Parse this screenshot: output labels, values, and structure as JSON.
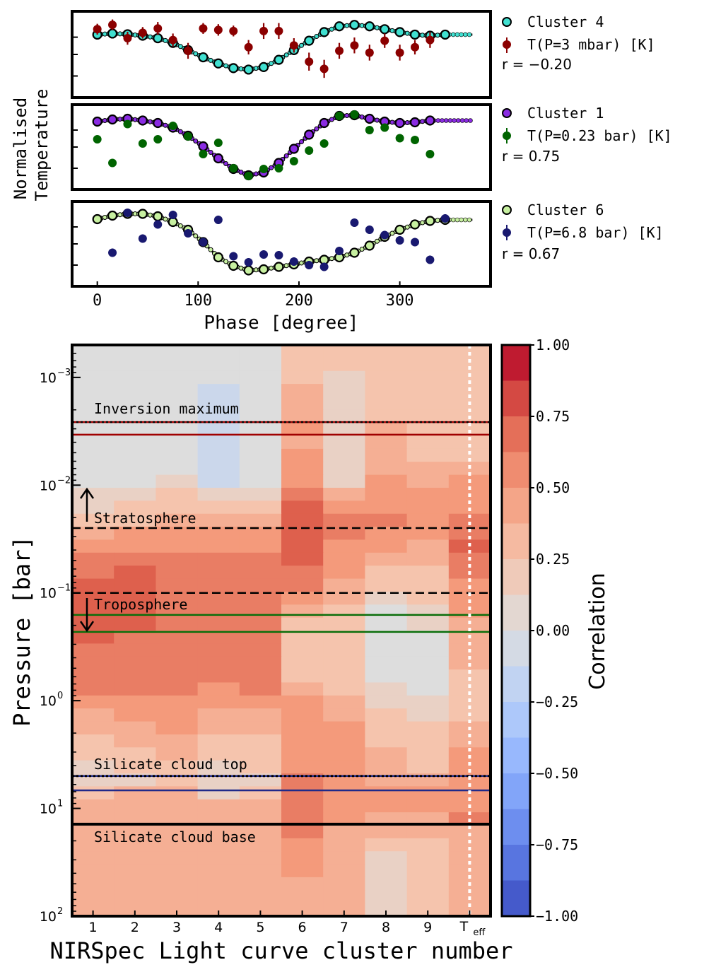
{
  "figure": {
    "top_ylabel_line1": "Normalised",
    "top_ylabel_line2": "Temperature",
    "top_xlabel": "Phase [degree]",
    "top_xticks": [
      0,
      100,
      200,
      300
    ],
    "panels": [
      {
        "cluster_label": "Cluster 4",
        "temp_label": "T(P=3 mbar) [K]",
        "r_label": "r = −0.20",
        "cluster_color": "#40e0d0",
        "temp_color": "#8b0000"
      },
      {
        "cluster_label": "Cluster 1",
        "temp_label": "T(P=0.23 bar) [K]",
        "r_label": "r = 0.75",
        "cluster_color": "#8a2be2",
        "temp_color": "#006400"
      },
      {
        "cluster_label": "Cluster 6",
        "temp_label": "T(P=6.8 bar) [K]",
        "r_label": "r = 0.67",
        "cluster_color": "#c7f0a0",
        "temp_color": "#191970"
      }
    ],
    "heatmap": {
      "xlabel": "NIRSpec Light curve cluster number",
      "ylabel": "Pressure [bar]",
      "colorbar_label": "Correlation",
      "colorbar_ticks": [
        "1.00",
        "0.75",
        "0.50",
        "0.25",
        "0.00",
        "−0.25",
        "−0.50",
        "−0.75",
        "−1.00"
      ],
      "xticks": [
        "1",
        "2",
        "3",
        "4",
        "5",
        "6",
        "7",
        "8",
        "9",
        "T_eff"
      ],
      "yticks": [
        {
          "base": "10",
          "exp": "−3"
        },
        {
          "base": "10",
          "exp": "−2"
        },
        {
          "base": "10",
          "exp": "−1"
        },
        {
          "base": "10",
          "exp": "0"
        },
        {
          "base": "10",
          "exp": "1"
        },
        {
          "base": "10",
          "exp": "2"
        }
      ],
      "annotations": {
        "inversion": "Inversion maximum",
        "stratosphere": "Stratosphere",
        "troposphere": "Troposphere",
        "cloud_top": "Silicate cloud top",
        "cloud_base": "Silicate cloud base"
      }
    }
  },
  "chart_data": [
    {
      "type": "scatter",
      "panel": "top",
      "x_range": [
        -25,
        390
      ],
      "series": [
        {
          "name": "Cluster 4",
          "color": "#40e0d0",
          "x": [
            0,
            15,
            30,
            45,
            60,
            75,
            90,
            105,
            120,
            135,
            150,
            165,
            180,
            195,
            210,
            225,
            240,
            255,
            270,
            285,
            300,
            315,
            330,
            345
          ],
          "y": [
            0.55,
            0.58,
            0.56,
            0.52,
            0.45,
            0.32,
            0.12,
            -0.08,
            -0.25,
            -0.38,
            -0.42,
            -0.35,
            -0.15,
            0.12,
            0.38,
            0.62,
            0.78,
            0.82,
            0.78,
            0.7,
            0.62,
            0.55,
            0.52,
            0.55
          ]
        },
        {
          "name": "T(P=3 mbar) [K]",
          "color": "#8b0000",
          "x": [
            0,
            15,
            30,
            45,
            60,
            75,
            90,
            105,
            120,
            135,
            150,
            165,
            180,
            195,
            210,
            225,
            240,
            255,
            270,
            285,
            300,
            315,
            330
          ],
          "y": [
            0.7,
            0.82,
            0.45,
            0.6,
            0.72,
            0.4,
            0.1,
            0.72,
            0.68,
            0.65,
            0.2,
            0.65,
            0.65,
            0.25,
            -0.2,
            -0.4,
            0.1,
            0.25,
            0.05,
            0.38,
            0.05,
            0.2,
            0.4
          ],
          "yerr": [
            0.15,
            0.15,
            0.18,
            0.16,
            0.18,
            0.18,
            0.22,
            0.15,
            0.16,
            0.15,
            0.2,
            0.22,
            0.22,
            0.2,
            0.25,
            0.25,
            0.22,
            0.22,
            0.22,
            0.2,
            0.22,
            0.2,
            0.22
          ]
        }
      ]
    },
    {
      "type": "scatter",
      "panel": "middle",
      "x_range": [
        -25,
        390
      ],
      "series": [
        {
          "name": "Cluster 1",
          "color": "#8a2be2",
          "x": [
            0,
            15,
            30,
            45,
            60,
            75,
            90,
            105,
            120,
            135,
            150,
            165,
            180,
            195,
            210,
            225,
            240,
            255,
            270,
            285,
            300,
            315,
            330
          ],
          "y": [
            0.72,
            0.78,
            0.8,
            0.75,
            0.68,
            0.55,
            0.32,
            0.02,
            -0.32,
            -0.62,
            -0.8,
            -0.72,
            -0.45,
            -0.05,
            0.35,
            0.68,
            0.88,
            0.9,
            0.8,
            0.72,
            0.68,
            0.7,
            0.75
          ]
        },
        {
          "name": "T(P=0.23 bar) [K]",
          "color": "#006400",
          "x": [
            0,
            15,
            30,
            45,
            60,
            75,
            90,
            105,
            120,
            135,
            150,
            165,
            180,
            195,
            210,
            225,
            240,
            255,
            270,
            285,
            300,
            315,
            330
          ],
          "y": [
            0.22,
            -0.45,
            0.65,
            0.1,
            0.22,
            0.6,
            0.3,
            -0.2,
            0.12,
            -0.6,
            -0.82,
            -0.62,
            -0.6,
            -0.4,
            -0.1,
            0.1,
            0.88,
            0.92,
            0.48,
            0.55,
            0.25,
            0.2,
            -0.2
          ],
          "yerr": [
            0.04,
            0.04,
            0.04,
            0.04,
            0.04,
            0.04,
            0.04,
            0.04,
            0.04,
            0.04,
            0.04,
            0.04,
            0.04,
            0.04,
            0.04,
            0.04,
            0.04,
            0.04,
            0.04,
            0.04,
            0.04,
            0.04,
            0.08
          ]
        }
      ]
    },
    {
      "type": "scatter",
      "panel": "bottom",
      "x_range": [
        -25,
        390
      ],
      "series": [
        {
          "name": "Cluster 6",
          "color": "#c7f0a0",
          "x": [
            0,
            15,
            30,
            45,
            60,
            75,
            90,
            105,
            120,
            135,
            150,
            165,
            180,
            195,
            210,
            225,
            240,
            255,
            270,
            285,
            300,
            315,
            330,
            345
          ],
          "y": [
            0.7,
            0.8,
            0.85,
            0.85,
            0.78,
            0.62,
            0.4,
            0.05,
            -0.38,
            -0.62,
            -0.75,
            -0.72,
            -0.65,
            -0.58,
            -0.5,
            -0.45,
            -0.38,
            -0.25,
            -0.05,
            0.2,
            0.4,
            0.55,
            0.65,
            0.68
          ]
        },
        {
          "name": "T(P=6.8 bar) [K]",
          "color": "#191970",
          "x": [
            15,
            30,
            45,
            60,
            75,
            90,
            105,
            120,
            135,
            150,
            165,
            180,
            195,
            210,
            225,
            240,
            255,
            270,
            285,
            300,
            315,
            330,
            345
          ],
          "y": [
            -0.25,
            0.88,
            0.15,
            0.55,
            0.82,
            0.3,
            0.05,
            0.68,
            -0.35,
            -0.52,
            -0.3,
            -0.32,
            -0.5,
            -0.6,
            -0.65,
            -0.2,
            0.6,
            0.4,
            0.25,
            0.1,
            0.05,
            -0.45,
            0.72
          ],
          "yerr": [
            0.12,
            0.12,
            0.12,
            0.12,
            0.12,
            0.12,
            0.12,
            0.12,
            0.12,
            0.12,
            0.12,
            0.12,
            0.12,
            0.12,
            0.12,
            0.12,
            0.12,
            0.12,
            0.12,
            0.12,
            0.12,
            0.12,
            0.12
          ]
        }
      ]
    },
    {
      "type": "heatmap",
      "panel": "heatmap",
      "x_categories": [
        "1",
        "2",
        "3",
        "4",
        "5",
        "6",
        "7",
        "8",
        "9",
        "T_eff"
      ],
      "y_scale": "log",
      "y_range_bar": [
        0.0005,
        100
      ],
      "colorbar_range": [
        -1,
        1
      ],
      "reference_pressures_bar": {
        "inversion_maximum": 0.0026,
        "inversion_band": [
          0.0026,
          0.0034
        ],
        "stratosphere": 0.025,
        "troposphere": 0.1,
        "green_band": [
          0.16,
          0.23
        ],
        "silicate_cloud_top": 5.0,
        "blue_band": [
          5.0,
          6.8
        ],
        "silicate_cloud_base": 14.0
      },
      "row_pressures_bar": [
        0.00061,
        0.00081,
        0.00106,
        0.0014,
        0.00184,
        0.00242,
        0.0032,
        0.0042,
        0.0055,
        0.0073,
        0.0096,
        0.0126,
        0.0166,
        0.0219,
        0.0288,
        0.038,
        0.05,
        0.066,
        0.087,
        0.114,
        0.15,
        0.198,
        0.26,
        0.34,
        0.45,
        0.59,
        0.78,
        1.03,
        1.36,
        1.79,
        2.35,
        3.1,
        4.1,
        5.4,
        7.1,
        9.3,
        12.3,
        16.2,
        21.3,
        28.1,
        37.0,
        48.7,
        64.2,
        84.5
      ],
      "values": [
        [
          0.0,
          0.0,
          0.05,
          0.05,
          0.05,
          0.3,
          0.2,
          0.25,
          0.2,
          0.25
        ],
        [
          0.0,
          0.0,
          0.05,
          0.05,
          0.05,
          0.3,
          0.2,
          0.25,
          0.2,
          0.25
        ],
        [
          0.0,
          0.0,
          0.05,
          -0.05,
          0.0,
          0.3,
          0.1,
          0.25,
          0.2,
          0.25
        ],
        [
          -0.05,
          0.0,
          0.05,
          -0.1,
          0.0,
          0.35,
          0.1,
          0.3,
          0.2,
          0.25
        ],
        [
          -0.05,
          -0.05,
          0.0,
          -0.1,
          0.0,
          0.4,
          0.1,
          0.3,
          0.2,
          0.25
        ],
        [
          -0.05,
          -0.05,
          0.0,
          -0.1,
          0.0,
          0.4,
          0.1,
          0.3,
          0.2,
          0.25
        ],
        [
          -0.05,
          -0.05,
          0.0,
          -0.15,
          0.0,
          0.45,
          0.15,
          0.35,
          0.3,
          0.3
        ],
        [
          -0.05,
          -0.05,
          0.0,
          -0.15,
          0.0,
          0.4,
          0.15,
          0.35,
          0.3,
          0.3
        ],
        [
          -0.05,
          -0.05,
          0.05,
          -0.15,
          -0.05,
          0.45,
          0.15,
          0.35,
          0.3,
          0.3
        ],
        [
          -0.05,
          -0.05,
          0.05,
          -0.15,
          -0.05,
          0.5,
          0.1,
          0.4,
          0.35,
          0.4
        ],
        [
          -0.05,
          0.0,
          0.1,
          -0.1,
          0.0,
          0.55,
          0.15,
          0.45,
          0.4,
          0.45
        ],
        [
          0.1,
          0.15,
          0.2,
          0.1,
          0.15,
          0.6,
          0.4,
          0.5,
          0.45,
          0.5
        ],
        [
          0.15,
          0.2,
          0.3,
          0.2,
          0.2,
          0.7,
          0.5,
          0.55,
          0.5,
          0.55
        ],
        [
          0.25,
          0.3,
          0.4,
          0.35,
          0.35,
          0.75,
          0.6,
          0.6,
          0.55,
          0.6
        ],
        [
          0.35,
          0.45,
          0.5,
          0.45,
          0.45,
          0.75,
          0.6,
          0.5,
          0.45,
          0.6
        ],
        [
          0.5,
          0.55,
          0.55,
          0.55,
          0.55,
          0.75,
          0.55,
          0.45,
          0.4,
          0.75
        ],
        [
          0.6,
          0.65,
          0.6,
          0.6,
          0.6,
          0.7,
          0.5,
          0.35,
          0.35,
          0.65
        ],
        [
          0.65,
          0.7,
          0.65,
          0.65,
          0.6,
          0.65,
          0.45,
          0.3,
          0.3,
          0.6
        ],
        [
          0.7,
          0.7,
          0.65,
          0.65,
          0.6,
          0.6,
          0.4,
          0.2,
          0.25,
          0.55
        ],
        [
          0.7,
          0.7,
          0.65,
          0.65,
          0.65,
          0.5,
          0.35,
          0.15,
          0.2,
          0.5
        ],
        [
          0.7,
          0.7,
          0.65,
          0.65,
          0.65,
          0.35,
          0.3,
          0.05,
          0.15,
          0.45
        ],
        [
          0.75,
          0.7,
          0.65,
          0.65,
          0.65,
          0.3,
          0.25,
          0.05,
          0.1,
          0.4
        ],
        [
          0.7,
          0.65,
          0.65,
          0.65,
          0.65,
          0.3,
          0.25,
          -0.05,
          0.05,
          0.35
        ],
        [
          0.65,
          0.65,
          0.65,
          0.65,
          0.65,
          0.3,
          0.25,
          -0.05,
          0.05,
          0.35
        ],
        [
          0.65,
          0.65,
          0.65,
          0.65,
          0.65,
          0.3,
          0.25,
          0.0,
          0.05,
          0.35
        ],
        [
          0.65,
          0.65,
          0.65,
          0.6,
          0.65,
          0.3,
          0.3,
          0.05,
          0.05,
          0.3
        ],
        [
          0.65,
          0.65,
          0.6,
          0.55,
          0.6,
          0.35,
          0.3,
          0.1,
          0.05,
          0.3
        ],
        [
          0.55,
          0.55,
          0.55,
          0.45,
          0.5,
          0.45,
          0.35,
          0.15,
          0.1,
          0.3
        ],
        [
          0.4,
          0.45,
          0.45,
          0.4,
          0.4,
          0.5,
          0.4,
          0.2,
          0.15,
          0.3
        ],
        [
          0.35,
          0.4,
          0.45,
          0.35,
          0.35,
          0.5,
          0.45,
          0.25,
          0.2,
          0.35
        ],
        [
          0.3,
          0.35,
          0.4,
          0.3,
          0.3,
          0.5,
          0.5,
          0.3,
          0.25,
          0.35
        ],
        [
          0.25,
          0.3,
          0.35,
          0.25,
          0.25,
          0.5,
          0.5,
          0.35,
          0.3,
          0.45
        ],
        [
          0.15,
          0.2,
          0.25,
          0.15,
          0.2,
          0.55,
          0.5,
          0.35,
          0.3,
          0.5
        ],
        [
          0.1,
          0.15,
          0.2,
          0.1,
          0.15,
          0.6,
          0.5,
          0.4,
          0.35,
          0.55
        ],
        [
          0.3,
          0.35,
          0.35,
          0.15,
          0.3,
          0.65,
          0.5,
          0.45,
          0.45,
          0.55
        ],
        [
          0.35,
          0.35,
          0.35,
          0.4,
          0.35,
          0.65,
          0.5,
          0.45,
          0.45,
          0.55
        ],
        [
          0.35,
          0.35,
          0.35,
          0.35,
          0.35,
          0.6,
          0.45,
          0.4,
          0.4,
          0.6
        ],
        [
          0.35,
          0.35,
          0.35,
          0.35,
          0.35,
          0.6,
          0.4,
          0.35,
          0.35,
          0.35
        ],
        [
          0.35,
          0.35,
          0.35,
          0.35,
          0.35,
          0.55,
          0.35,
          0.3,
          0.3,
          0.35
        ],
        [
          0.35,
          0.35,
          0.35,
          0.35,
          0.35,
          0.5,
          0.35,
          0.15,
          0.25,
          0.35
        ],
        [
          0.35,
          0.35,
          0.35,
          0.35,
          0.35,
          0.45,
          0.35,
          0.1,
          0.2,
          0.35
        ],
        [
          0.35,
          0.35,
          0.35,
          0.35,
          0.35,
          0.4,
          0.35,
          0.1,
          0.2,
          0.35
        ],
        [
          0.35,
          0.35,
          0.35,
          0.35,
          0.35,
          0.4,
          0.35,
          0.1,
          0.2,
          0.35
        ],
        [
          0.35,
          0.35,
          0.35,
          0.35,
          0.35,
          0.4,
          0.35,
          0.1,
          0.2,
          0.35
        ]
      ]
    }
  ]
}
